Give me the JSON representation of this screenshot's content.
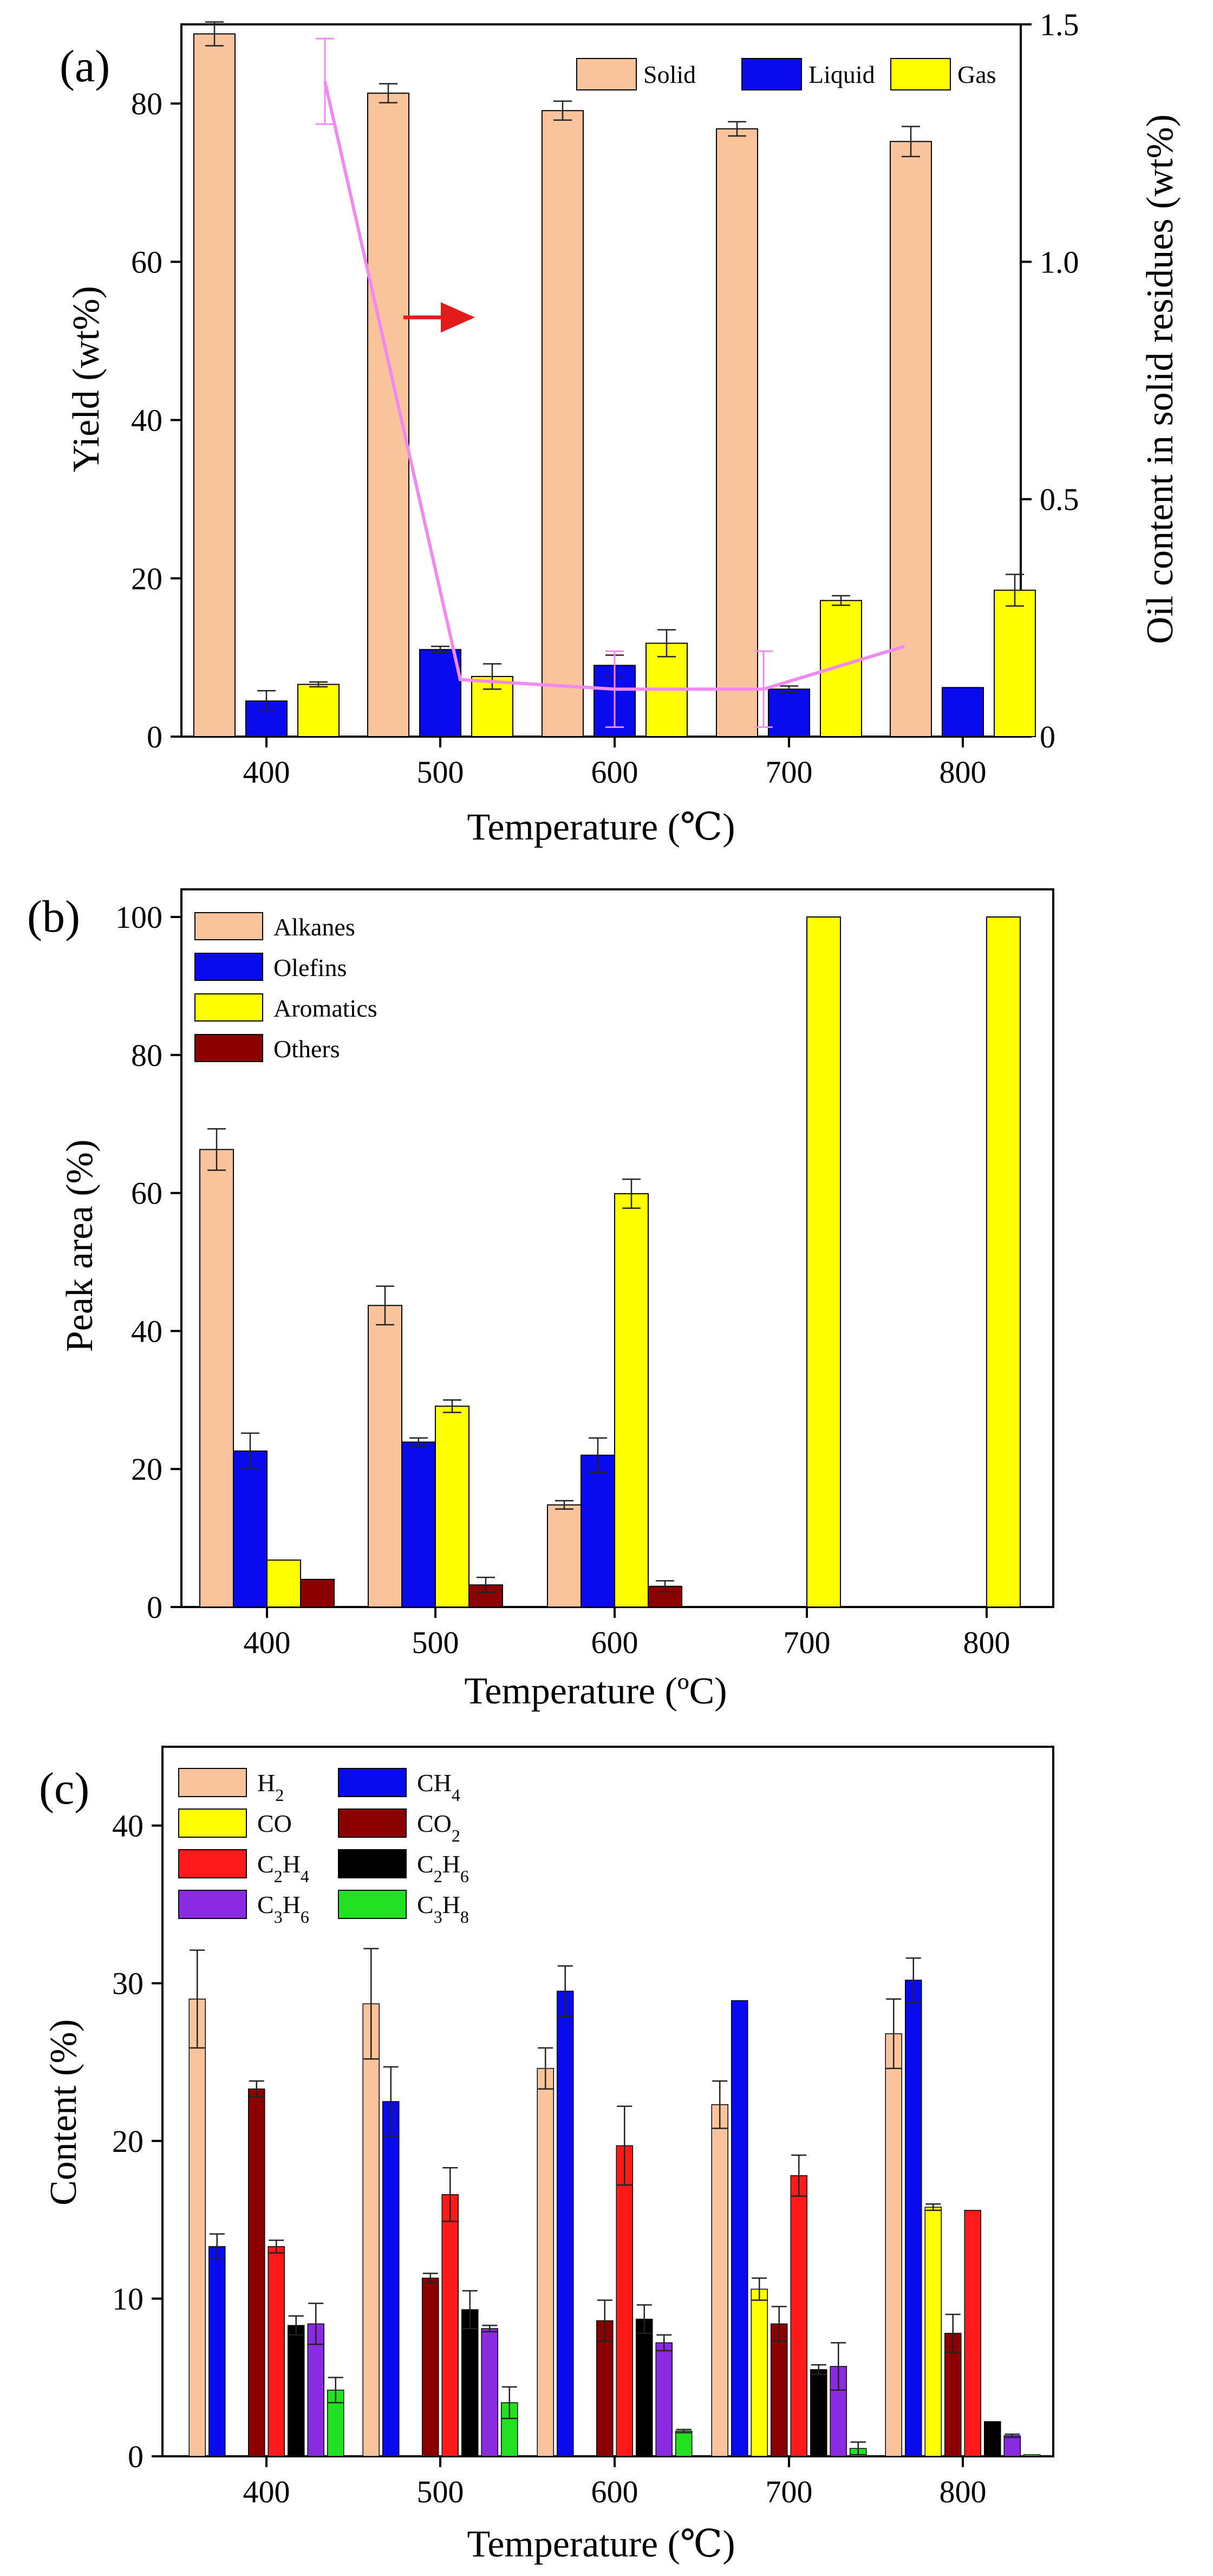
{
  "colors": {
    "solid": "#F9C39B",
    "liquid": "#0A0AEF",
    "gas": "#FFFF00",
    "oil": "#F08AF0",
    "arrow": "#E51A1A",
    "others": "#8B0000",
    "co2": "#8B0000",
    "c2h4": "#FF1A1A",
    "c2h6": "#000000",
    "c3h6": "#8A2BE2",
    "c3h8": "#22E022",
    "h2": "#F9C39B",
    "ch4": "#0A0AEF",
    "co": "#FFFF00",
    "alkanes": "#F9C39B",
    "olefins": "#0A0AEF",
    "aromatics": "#FFFF00"
  },
  "chart_data": [
    {
      "type": "bar",
      "panel_label": "(a)",
      "xlabel": "Temperature (℃)",
      "ylabel": "Yield (wt%)",
      "y2label": "Oil content in solid residues (wt%)",
      "categories": [
        "400",
        "500",
        "600",
        "700",
        "800"
      ],
      "ylim": [
        0,
        90
      ],
      "yticks": [
        "0",
        "20",
        "40",
        "60",
        "80"
      ],
      "y2lim": [
        0,
        1.5
      ],
      "y2ticks": [
        "0",
        "0.5",
        "1.0",
        "1.5"
      ],
      "legend_position": "top-right",
      "series": [
        {
          "name": "Solid",
          "key": "solid",
          "values": [
            88.8,
            81.3,
            79.1,
            76.8,
            75.2
          ],
          "errors": [
            1.5,
            1.2,
            1.2,
            0.9,
            1.9
          ]
        },
        {
          "name": "Liquid",
          "key": "liquid",
          "values": [
            4.5,
            11.0,
            9.0,
            6.0,
            6.2
          ],
          "errors": [
            1.3,
            0.4,
            1.3,
            0.4,
            0
          ]
        },
        {
          "name": "Gas",
          "key": "gas",
          "values": [
            6.6,
            7.6,
            11.8,
            17.2,
            18.5
          ],
          "errors": [
            0.3,
            1.6,
            1.7,
            0.6,
            2.0
          ]
        }
      ],
      "line_series": {
        "name": "Oil content",
        "key": "oil",
        "values": [
          1.38,
          0.12,
          0.1,
          0.1,
          0.19
        ],
        "errors": [
          0.09,
          0,
          0.08,
          0.08,
          0
        ]
      }
    },
    {
      "type": "bar",
      "panel_label": "(b)",
      "xlabel": "Temperature (ºC)",
      "ylabel": "Peak area (%)",
      "categories": [
        "400",
        "500",
        "600",
        "700",
        "800"
      ],
      "ylim": [
        0,
        104
      ],
      "yticks": [
        "0",
        "20",
        "40",
        "60",
        "80",
        "100"
      ],
      "legend_position": "top-left",
      "series": [
        {
          "name": "Alkanes",
          "key": "alkanes",
          "values": [
            66.3,
            43.7,
            14.8,
            0,
            0
          ],
          "errors": [
            3.0,
            2.8,
            0.6,
            0,
            0
          ]
        },
        {
          "name": "Olefins",
          "key": "olefins",
          "values": [
            22.6,
            23.9,
            22.0,
            0,
            0
          ],
          "errors": [
            2.6,
            0.6,
            2.5,
            0,
            0
          ]
        },
        {
          "name": "Aromatics",
          "key": "aromatics",
          "values": [
            6.8,
            29.1,
            59.9,
            100,
            100
          ],
          "errors": [
            0,
            0.9,
            2.1,
            0,
            0
          ]
        },
        {
          "name": "Others",
          "key": "others",
          "values": [
            4.0,
            3.2,
            3.0,
            0,
            0
          ],
          "errors": [
            0,
            1.1,
            0.8,
            0,
            0
          ]
        }
      ]
    },
    {
      "type": "bar",
      "panel_label": "(c)",
      "xlabel": "Temperature (℃)",
      "ylabel": "Content (%)",
      "categories": [
        "400",
        "500",
        "600",
        "700",
        "800"
      ],
      "ylim": [
        0,
        45
      ],
      "yticks": [
        "0",
        "10",
        "20",
        "30",
        "40"
      ],
      "legend_position": "top-left",
      "series": [
        {
          "name": "H2",
          "label_main": "H",
          "label_sub": "2",
          "label_main2": "",
          "label_sub2": "",
          "key": "h2",
          "values": [
            29.0,
            28.7,
            24.6,
            22.3,
            26.8
          ],
          "errors": [
            3.1,
            3.5,
            1.3,
            1.5,
            2.2
          ]
        },
        {
          "name": "CH4",
          "label_main": "CH",
          "label_sub": "4",
          "label_main2": "",
          "label_sub2": "",
          "key": "ch4",
          "values": [
            13.3,
            22.5,
            29.5,
            28.9,
            30.2
          ],
          "errors": [
            0.8,
            2.2,
            1.6,
            0,
            1.4
          ]
        },
        {
          "name": "CO",
          "label_main": "CO",
          "label_sub": "",
          "label_main2": "",
          "label_sub2": "",
          "key": "co",
          "values": [
            0,
            0,
            0,
            10.6,
            15.8
          ],
          "errors": [
            0,
            0,
            0,
            0.7,
            0.2
          ]
        },
        {
          "name": "CO2",
          "label_main": "CO",
          "label_sub": "2",
          "label_main2": "",
          "label_sub2": "",
          "key": "co2",
          "values": [
            23.3,
            11.3,
            8.6,
            8.4,
            7.8
          ],
          "errors": [
            0.5,
            0.3,
            1.3,
            1.1,
            1.2
          ]
        },
        {
          "name": "C2H4",
          "label_main": "C",
          "label_sub": "2",
          "label_main2": "H",
          "label_sub2": "4",
          "key": "c2h4",
          "values": [
            13.3,
            16.6,
            19.7,
            17.8,
            15.6
          ],
          "errors": [
            0.4,
            1.7,
            2.5,
            1.3,
            0
          ]
        },
        {
          "name": "C2H6",
          "label_main": "C",
          "label_sub": "2",
          "label_main2": "H",
          "label_sub2": "6",
          "key": "c2h6",
          "values": [
            8.3,
            9.3,
            8.7,
            5.5,
            2.2
          ],
          "errors": [
            0.6,
            1.2,
            0.9,
            0.3,
            0
          ]
        },
        {
          "name": "C3H6",
          "label_main": "C",
          "label_sub": "3",
          "label_main2": "H",
          "label_sub2": "6",
          "key": "c3h6",
          "values": [
            8.4,
            8.1,
            7.2,
            5.7,
            1.3
          ],
          "errors": [
            1.3,
            0.2,
            0.5,
            1.5,
            0.1
          ]
        },
        {
          "name": "C3H8",
          "label_main": "C",
          "label_sub": "3",
          "label_main2": "H",
          "label_sub2": "8",
          "key": "c3h8",
          "values": [
            4.2,
            3.4,
            1.6,
            0.5,
            0.1
          ],
          "errors": [
            0.8,
            1.0,
            0.1,
            0.4,
            0
          ]
        }
      ]
    }
  ]
}
